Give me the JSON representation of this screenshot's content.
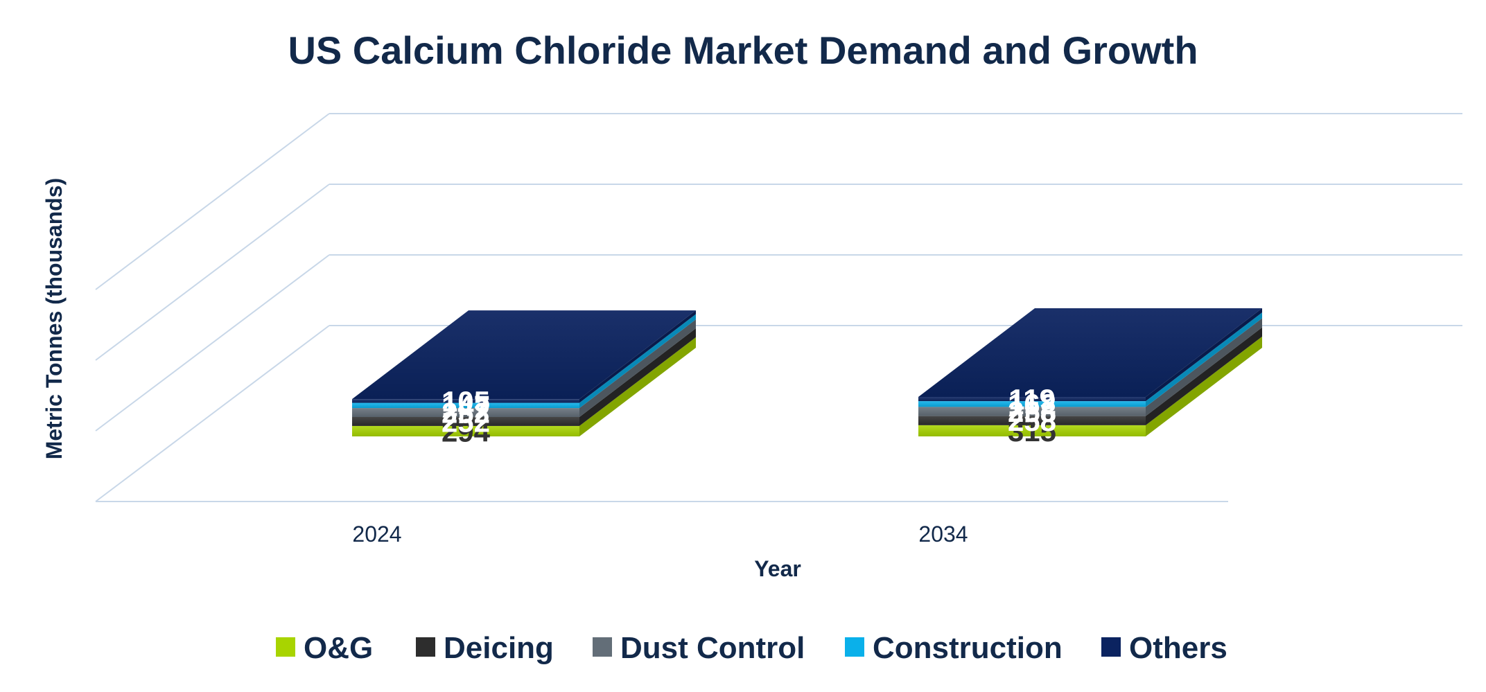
{
  "chart_data": {
    "type": "bar",
    "stacked": true,
    "three_d": true,
    "title": "US Calcium Chloride Market Demand and Growth",
    "xlabel": "Year",
    "ylabel": "Metric Tonnes (thousands)",
    "categories": [
      "2024",
      "2034"
    ],
    "series": [
      {
        "name": "O&G",
        "values": [
          294,
          315
        ],
        "color": "#a8d400",
        "label_color": "#333333"
      },
      {
        "name": "Deicing",
        "values": [
          252,
          258
        ],
        "color": "#2d2d2d",
        "label_color": "#ffffff"
      },
      {
        "name": "Dust Control",
        "values": [
          252,
          258
        ],
        "color": "#636e78",
        "label_color": "#ffffff"
      },
      {
        "name": "Construction",
        "values": [
          147,
          162
        ],
        "color": "#0ab0ea",
        "label_color": "#ffffff"
      },
      {
        "name": "Others",
        "values": [
          105,
          119
        ],
        "color": "#0b2360",
        "label_color": "#ffffff"
      }
    ],
    "grid": true,
    "legend_position": "bottom",
    "gridline_color": "#c8d7e8"
  }
}
